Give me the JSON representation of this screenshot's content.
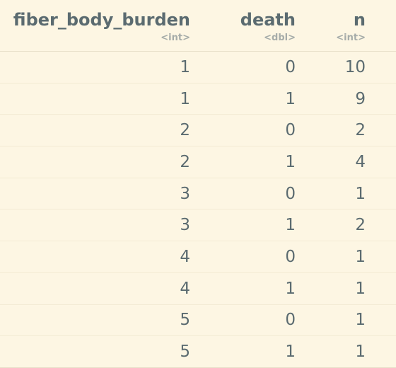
{
  "table": {
    "columns": [
      {
        "name": "fiber_body_burden",
        "type": "<int>"
      },
      {
        "name": "death",
        "type": "<dbl>"
      },
      {
        "name": "n",
        "type": "<int>"
      }
    ],
    "rows": [
      [
        "1",
        "0",
        "10"
      ],
      [
        "1",
        "1",
        "9"
      ],
      [
        "2",
        "0",
        "2"
      ],
      [
        "2",
        "1",
        "4"
      ],
      [
        "3",
        "0",
        "1"
      ],
      [
        "3",
        "1",
        "2"
      ],
      [
        "4",
        "0",
        "1"
      ],
      [
        "4",
        "1",
        "1"
      ],
      [
        "5",
        "0",
        "1"
      ],
      [
        "5",
        "1",
        "1"
      ]
    ]
  }
}
